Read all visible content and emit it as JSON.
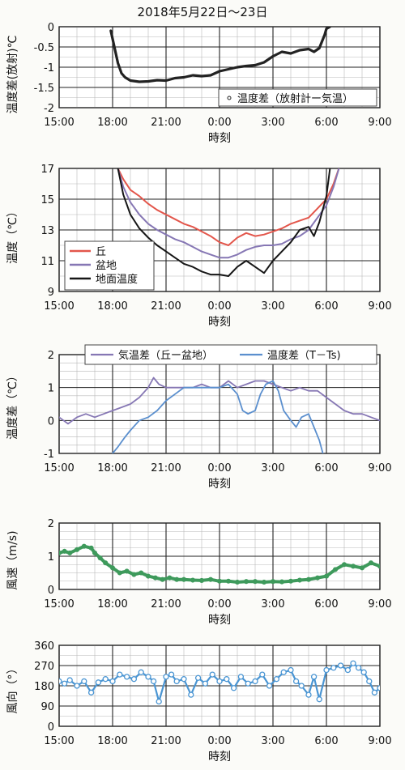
{
  "page_title": "2018年5月22日～23日",
  "x_ticks": [
    "15:00",
    "18:00",
    "21:00",
    "0:00",
    "3:00",
    "6:00",
    "9:00"
  ],
  "colors": {
    "hill": "#e3564b",
    "basin": "#8677b4",
    "ground": "#161616",
    "diffline": "#5b8fce",
    "wind": "#3e9a5c",
    "dir": "#4a95d3",
    "grid": "#222222",
    "black": "#222222"
  },
  "chart_data": [
    {
      "id": "radiation",
      "type": "scatter",
      "xlabel": "時刻",
      "ylabel": "温度差(放射)℃",
      "y_ticks": [
        "0",
        "-0.5",
        "-1",
        "-1.5",
        "-2"
      ],
      "ylim": [
        -2,
        0
      ],
      "xlim": [
        15,
        33
      ],
      "legend": [
        "温度差（放射計ー気温）"
      ],
      "series": [
        {
          "name": "温度差（放射計ー気温）",
          "x": [
            17.9,
            18.1,
            18.3,
            18.5,
            18.7,
            19.0,
            19.5,
            20.0,
            20.5,
            21.0,
            21.5,
            22.0,
            22.5,
            23.0,
            23.5,
            24.0,
            24.5,
            25.0,
            25.5,
            26.0,
            26.5,
            27.0,
            27.5,
            28.0,
            28.5,
            29.0,
            29.3,
            29.6,
            29.9,
            30.0,
            30.2,
            30.3
          ],
          "values": [
            -0.1,
            -0.5,
            -0.9,
            -1.15,
            -1.25,
            -1.33,
            -1.36,
            -1.35,
            -1.32,
            -1.33,
            -1.27,
            -1.25,
            -1.2,
            -1.22,
            -1.2,
            -1.1,
            -1.05,
            -1.0,
            -0.97,
            -0.95,
            -0.88,
            -0.73,
            -0.62,
            -0.66,
            -0.58,
            -0.55,
            -0.62,
            -0.53,
            -0.2,
            -0.05,
            0.0,
            0.1
          ]
        }
      ]
    },
    {
      "id": "temperature",
      "type": "line",
      "xlabel": "時刻",
      "ylabel": "温度（℃）",
      "y_ticks": [
        "17",
        "15",
        "13",
        "11",
        "9"
      ],
      "ylim": [
        9,
        17
      ],
      "xlim": [
        15,
        33
      ],
      "legend": [
        "丘",
        "盆地",
        "地面温度"
      ],
      "series": [
        {
          "name": "丘",
          "x": [
            18.3,
            18.6,
            19.0,
            19.5,
            20.0,
            20.5,
            21.0,
            21.5,
            22.0,
            22.5,
            23.0,
            23.5,
            24.0,
            24.5,
            25.0,
            25.5,
            26.0,
            26.5,
            27.0,
            27.5,
            28.0,
            28.5,
            29.0,
            29.5,
            30.0,
            30.4,
            30.7
          ],
          "values": [
            17.0,
            16.3,
            15.6,
            15.2,
            14.7,
            14.3,
            14.0,
            13.7,
            13.4,
            13.2,
            12.9,
            12.6,
            12.2,
            12.0,
            12.5,
            12.8,
            12.6,
            12.7,
            12.9,
            13.1,
            13.4,
            13.6,
            13.8,
            14.4,
            15.0,
            16.0,
            17.0
          ]
        },
        {
          "name": "盆地",
          "x": [
            18.3,
            18.6,
            19.0,
            19.5,
            20.0,
            20.5,
            21.0,
            21.5,
            22.0,
            22.5,
            23.0,
            23.5,
            24.0,
            24.5,
            25.0,
            25.5,
            26.0,
            26.5,
            27.0,
            27.5,
            28.0,
            28.5,
            29.0,
            29.5,
            30.0,
            30.4,
            30.7
          ],
          "values": [
            17.0,
            15.8,
            14.8,
            14.0,
            13.4,
            13.0,
            12.7,
            12.4,
            12.2,
            11.9,
            11.6,
            11.4,
            11.2,
            11.2,
            11.4,
            11.7,
            11.9,
            12.0,
            12.0,
            12.1,
            12.4,
            12.6,
            13.0,
            13.8,
            14.6,
            15.8,
            17.0
          ]
        },
        {
          "name": "地面温度",
          "x": [
            18.3,
            18.6,
            19.0,
            19.5,
            20.0,
            20.5,
            21.0,
            21.5,
            22.0,
            22.5,
            23.0,
            23.5,
            24.0,
            24.5,
            25.0,
            25.5,
            26.0,
            26.5,
            27.0,
            27.5,
            28.0,
            28.5,
            29.0,
            29.3,
            29.6,
            30.0,
            30.2
          ],
          "values": [
            17.0,
            15.3,
            14.0,
            13.1,
            12.5,
            12.0,
            11.6,
            11.2,
            10.8,
            10.6,
            10.3,
            10.1,
            10.1,
            10.0,
            10.6,
            11.0,
            10.6,
            10.2,
            11.0,
            11.6,
            12.2,
            13.0,
            13.2,
            12.6,
            13.5,
            15.2,
            17.0
          ]
        }
      ]
    },
    {
      "id": "difference",
      "type": "line",
      "xlabel": "時刻",
      "ylabel": "温度差（℃）",
      "y_ticks": [
        "2",
        "1",
        "0",
        "-1"
      ],
      "ylim": [
        -1,
        2
      ],
      "xlim": [
        15,
        33
      ],
      "legend": [
        "気温差（丘ー盆地）",
        "温度差（T－Ts)"
      ],
      "series": [
        {
          "name": "気温差（丘ー盆地）",
          "x": [
            15.0,
            15.5,
            16.0,
            16.5,
            17.0,
            17.5,
            18.0,
            18.5,
            19.0,
            19.5,
            20.0,
            20.3,
            20.6,
            21.0,
            21.5,
            22.0,
            22.5,
            23.0,
            23.5,
            24.0,
            24.5,
            25.0,
            25.5,
            26.0,
            26.5,
            27.0,
            27.5,
            28.0,
            28.5,
            29.0,
            29.5,
            30.0,
            30.5,
            31.0,
            31.5,
            32.0,
            32.5,
            33.0
          ],
          "values": [
            0.1,
            -0.1,
            0.1,
            0.2,
            0.1,
            0.2,
            0.3,
            0.4,
            0.5,
            0.7,
            1.0,
            1.3,
            1.1,
            1.0,
            1.0,
            1.0,
            1.0,
            1.1,
            1.0,
            1.0,
            1.2,
            1.0,
            1.1,
            1.2,
            1.2,
            1.1,
            1.0,
            0.9,
            1.0,
            0.9,
            0.9,
            0.7,
            0.5,
            0.3,
            0.2,
            0.2,
            0.1,
            0.0
          ]
        },
        {
          "name": "温度差（T－Ts)",
          "x": [
            18.0,
            18.3,
            18.7,
            19.0,
            19.5,
            20.0,
            20.5,
            21.0,
            21.5,
            22.0,
            22.5,
            23.0,
            23.5,
            24.0,
            24.5,
            25.0,
            25.3,
            25.6,
            26.0,
            26.3,
            26.6,
            27.0,
            27.3,
            27.6,
            28.0,
            28.3,
            28.6,
            29.0,
            29.3,
            29.6,
            29.8
          ],
          "values": [
            -1.0,
            -0.8,
            -0.5,
            -0.3,
            0.0,
            0.1,
            0.3,
            0.6,
            0.8,
            1.0,
            1.0,
            1.0,
            1.0,
            1.0,
            1.1,
            0.8,
            0.3,
            0.2,
            0.3,
            0.8,
            1.1,
            1.2,
            0.9,
            0.3,
            0.0,
            -0.2,
            0.1,
            0.2,
            -0.2,
            -0.6,
            -1.0
          ]
        }
      ]
    },
    {
      "id": "wind-speed",
      "type": "scatter",
      "xlabel": "時刻",
      "ylabel": "風速（m/s)",
      "y_ticks": [
        "2",
        "1",
        "0"
      ],
      "ylim": [
        0,
        2
      ],
      "xlim": [
        15,
        33
      ],
      "series": [
        {
          "name": "風速",
          "x": [
            15.0,
            15.3,
            15.6,
            16.0,
            16.4,
            16.8,
            17.0,
            17.3,
            17.6,
            18.0,
            18.4,
            18.8,
            19.2,
            19.6,
            20.0,
            20.4,
            20.8,
            21.2,
            21.6,
            22.0,
            22.5,
            23.0,
            23.5,
            24.0,
            24.5,
            25.0,
            25.5,
            26.0,
            26.5,
            27.0,
            27.5,
            28.0,
            28.5,
            29.0,
            29.5,
            30.0,
            30.5,
            31.0,
            31.5,
            32.0,
            32.5,
            33.0
          ],
          "values": [
            1.1,
            1.15,
            1.1,
            1.2,
            1.3,
            1.25,
            1.1,
            0.95,
            0.8,
            0.65,
            0.5,
            0.55,
            0.45,
            0.5,
            0.4,
            0.35,
            0.3,
            0.35,
            0.3,
            0.3,
            0.28,
            0.27,
            0.3,
            0.25,
            0.25,
            0.22,
            0.24,
            0.24,
            0.22,
            0.24,
            0.23,
            0.25,
            0.28,
            0.3,
            0.35,
            0.4,
            0.6,
            0.75,
            0.7,
            0.65,
            0.8,
            0.7
          ]
        }
      ]
    },
    {
      "id": "wind-direction",
      "type": "scatter",
      "xlabel": "時刻",
      "ylabel": "風向（°）",
      "y_ticks": [
        "360",
        "270",
        "180",
        "90",
        "0"
      ],
      "ylim": [
        0,
        360
      ],
      "xlim": [
        15,
        33
      ],
      "series": [
        {
          "name": "風向",
          "x": [
            15.0,
            15.3,
            15.6,
            16.0,
            16.4,
            16.8,
            17.2,
            17.6,
            18.0,
            18.4,
            18.8,
            19.2,
            19.6,
            20.0,
            20.3,
            20.6,
            21.0,
            21.3,
            21.6,
            22.0,
            22.4,
            22.8,
            23.2,
            23.6,
            24.0,
            24.4,
            24.8,
            25.2,
            25.6,
            26.0,
            26.4,
            26.8,
            27.2,
            27.6,
            28.0,
            28.3,
            28.6,
            29.0,
            29.3,
            29.6,
            30.0,
            30.4,
            30.8,
            31.2,
            31.5,
            31.8,
            32.1,
            32.4,
            32.7,
            33.0
          ],
          "values": [
            200,
            190,
            205,
            180,
            200,
            150,
            195,
            210,
            200,
            230,
            220,
            210,
            240,
            220,
            200,
            110,
            220,
            230,
            200,
            210,
            140,
            215,
            190,
            230,
            200,
            210,
            170,
            220,
            190,
            200,
            230,
            180,
            210,
            240,
            250,
            200,
            180,
            140,
            220,
            120,
            250,
            260,
            270,
            250,
            280,
            260,
            240,
            200,
            150,
            170
          ]
        }
      ]
    }
  ]
}
